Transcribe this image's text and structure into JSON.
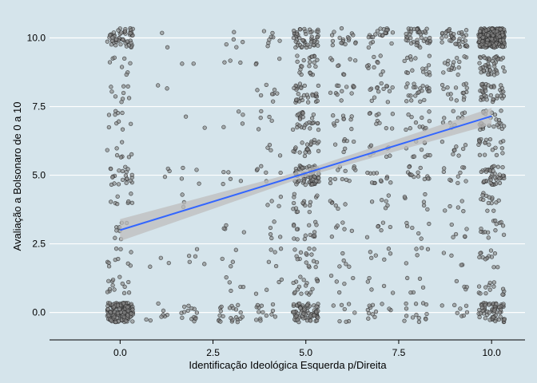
{
  "chart_data": {
    "type": "scatter",
    "title": "",
    "xlabel": "Identificação Ideológica Esquerda p/Direita",
    "ylabel": "Avaliação a Bolsonaro de 0 a 10",
    "xlim": [
      -1.9,
      10.9
    ],
    "ylim": [
      -1.0,
      10.8
    ],
    "x_ticks": [
      0,
      2.5,
      5,
      7.5,
      10
    ],
    "x_tick_labels": [
      "0.0",
      "2.5",
      "5.0",
      "7.5",
      "10.0"
    ],
    "y_ticks": [
      0,
      2.5,
      5,
      7.5,
      10
    ],
    "y_tick_labels": [
      "0.0",
      "2.5",
      "5.0",
      "7.5",
      "10.0"
    ],
    "grid": "horizontal major lines only",
    "jitter": 0.35,
    "points": [
      {
        "x": 0,
        "y": 0,
        "n": 180
      },
      {
        "x": 0,
        "y": 1,
        "n": 14
      },
      {
        "x": 0,
        "y": 2,
        "n": 10
      },
      {
        "x": 0,
        "y": 3,
        "n": 8
      },
      {
        "x": 0,
        "y": 4,
        "n": 8
      },
      {
        "x": 0,
        "y": 5,
        "n": 22
      },
      {
        "x": 0,
        "y": 6,
        "n": 8
      },
      {
        "x": 0,
        "y": 7,
        "n": 10
      },
      {
        "x": 0,
        "y": 8,
        "n": 9
      },
      {
        "x": 0,
        "y": 9,
        "n": 8
      },
      {
        "x": 0,
        "y": 10,
        "n": 55
      },
      {
        "x": 1,
        "y": 0,
        "n": 8
      },
      {
        "x": 1,
        "y": 2,
        "n": 3
      },
      {
        "x": 1,
        "y": 5,
        "n": 3
      },
      {
        "x": 1,
        "y": 8,
        "n": 2
      },
      {
        "x": 1,
        "y": 10,
        "n": 2
      },
      {
        "x": 2,
        "y": 0,
        "n": 14
      },
      {
        "x": 2,
        "y": 2,
        "n": 5
      },
      {
        "x": 2,
        "y": 4,
        "n": 3
      },
      {
        "x": 2,
        "y": 5,
        "n": 4
      },
      {
        "x": 2,
        "y": 7,
        "n": 2
      },
      {
        "x": 2,
        "y": 9,
        "n": 2
      },
      {
        "x": 3,
        "y": 0,
        "n": 22
      },
      {
        "x": 3,
        "y": 1,
        "n": 5
      },
      {
        "x": 3,
        "y": 2,
        "n": 4
      },
      {
        "x": 3,
        "y": 3,
        "n": 4
      },
      {
        "x": 3,
        "y": 5,
        "n": 5
      },
      {
        "x": 3,
        "y": 7,
        "n": 4
      },
      {
        "x": 3,
        "y": 9,
        "n": 3
      },
      {
        "x": 3,
        "y": 10,
        "n": 5
      },
      {
        "x": 4,
        "y": 0,
        "n": 14
      },
      {
        "x": 4,
        "y": 1,
        "n": 4
      },
      {
        "x": 4,
        "y": 2,
        "n": 5
      },
      {
        "x": 4,
        "y": 3,
        "n": 5
      },
      {
        "x": 4,
        "y": 4,
        "n": 4
      },
      {
        "x": 4,
        "y": 5,
        "n": 6
      },
      {
        "x": 4,
        "y": 6,
        "n": 4
      },
      {
        "x": 4,
        "y": 7,
        "n": 5
      },
      {
        "x": 4,
        "y": 8,
        "n": 8
      },
      {
        "x": 4,
        "y": 9,
        "n": 3
      },
      {
        "x": 4,
        "y": 10,
        "n": 8
      },
      {
        "x": 5,
        "y": 0,
        "n": 75
      },
      {
        "x": 5,
        "y": 1,
        "n": 18
      },
      {
        "x": 5,
        "y": 2,
        "n": 16
      },
      {
        "x": 5,
        "y": 3,
        "n": 16
      },
      {
        "x": 5,
        "y": 4,
        "n": 16
      },
      {
        "x": 5,
        "y": 5,
        "n": 70
      },
      {
        "x": 5,
        "y": 6,
        "n": 22
      },
      {
        "x": 5,
        "y": 7,
        "n": 28
      },
      {
        "x": 5,
        "y": 8,
        "n": 30
      },
      {
        "x": 5,
        "y": 9,
        "n": 22
      },
      {
        "x": 5,
        "y": 10,
        "n": 50
      },
      {
        "x": 6,
        "y": 0,
        "n": 8
      },
      {
        "x": 6,
        "y": 1,
        "n": 5
      },
      {
        "x": 6,
        "y": 2,
        "n": 5
      },
      {
        "x": 6,
        "y": 3,
        "n": 6
      },
      {
        "x": 6,
        "y": 4,
        "n": 6
      },
      {
        "x": 6,
        "y": 5,
        "n": 12
      },
      {
        "x": 6,
        "y": 6,
        "n": 7
      },
      {
        "x": 6,
        "y": 7,
        "n": 10
      },
      {
        "x": 6,
        "y": 8,
        "n": 12
      },
      {
        "x": 6,
        "y": 9,
        "n": 8
      },
      {
        "x": 6,
        "y": 10,
        "n": 18
      },
      {
        "x": 7,
        "y": 0,
        "n": 12
      },
      {
        "x": 7,
        "y": 1,
        "n": 5
      },
      {
        "x": 7,
        "y": 2,
        "n": 6
      },
      {
        "x": 7,
        "y": 3,
        "n": 6
      },
      {
        "x": 7,
        "y": 4,
        "n": 6
      },
      {
        "x": 7,
        "y": 5,
        "n": 12
      },
      {
        "x": 7,
        "y": 6,
        "n": 8
      },
      {
        "x": 7,
        "y": 7,
        "n": 10
      },
      {
        "x": 7,
        "y": 8,
        "n": 14
      },
      {
        "x": 7,
        "y": 9,
        "n": 10
      },
      {
        "x": 7,
        "y": 10,
        "n": 22
      },
      {
        "x": 8,
        "y": 0,
        "n": 14
      },
      {
        "x": 8,
        "y": 1,
        "n": 5
      },
      {
        "x": 8,
        "y": 2,
        "n": 5
      },
      {
        "x": 8,
        "y": 3,
        "n": 6
      },
      {
        "x": 8,
        "y": 4,
        "n": 6
      },
      {
        "x": 8,
        "y": 5,
        "n": 14
      },
      {
        "x": 8,
        "y": 6,
        "n": 10
      },
      {
        "x": 8,
        "y": 7,
        "n": 12
      },
      {
        "x": 8,
        "y": 8,
        "n": 22
      },
      {
        "x": 8,
        "y": 9,
        "n": 16
      },
      {
        "x": 8,
        "y": 10,
        "n": 42
      },
      {
        "x": 9,
        "y": 0,
        "n": 8
      },
      {
        "x": 9,
        "y": 1,
        "n": 4
      },
      {
        "x": 9,
        "y": 2,
        "n": 4
      },
      {
        "x": 9,
        "y": 3,
        "n": 6
      },
      {
        "x": 9,
        "y": 4,
        "n": 5
      },
      {
        "x": 9,
        "y": 5,
        "n": 10
      },
      {
        "x": 9,
        "y": 6,
        "n": 8
      },
      {
        "x": 9,
        "y": 7,
        "n": 10
      },
      {
        "x": 9,
        "y": 8,
        "n": 16
      },
      {
        "x": 9,
        "y": 9,
        "n": 16
      },
      {
        "x": 9,
        "y": 10,
        "n": 38
      },
      {
        "x": 10,
        "y": 0,
        "n": 65
      },
      {
        "x": 10,
        "y": 1,
        "n": 14
      },
      {
        "x": 10,
        "y": 2,
        "n": 12
      },
      {
        "x": 10,
        "y": 3,
        "n": 14
      },
      {
        "x": 10,
        "y": 4,
        "n": 14
      },
      {
        "x": 10,
        "y": 5,
        "n": 42
      },
      {
        "x": 10,
        "y": 6,
        "n": 20
      },
      {
        "x": 10,
        "y": 7,
        "n": 26
      },
      {
        "x": 10,
        "y": 8,
        "n": 38
      },
      {
        "x": 10,
        "y": 9,
        "n": 45
      },
      {
        "x": 10,
        "y": 10,
        "n": 260
      }
    ],
    "fit_line": {
      "method": "linear",
      "x": [
        0,
        10
      ],
      "y": [
        3.0,
        7.15
      ],
      "ci_lower": [
        2.6,
        6.85
      ],
      "ci_upper": [
        3.4,
        7.45
      ],
      "ci_mid": {
        "x": 5.0,
        "lower": 4.95,
        "upper": 5.2
      }
    },
    "colors": {
      "background": "#d5e4eb",
      "grid": "#ffffff",
      "point_fill": "#8a8a8a",
      "point_stroke": "#2b2b2b",
      "fit_line": "#3366ff",
      "ci_band": "#bdbdbd"
    }
  }
}
